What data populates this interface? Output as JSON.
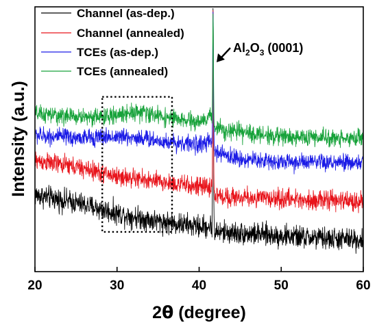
{
  "chart_data": {
    "type": "line",
    "xlabel_prefix": "2",
    "xlabel_symbol": "θ",
    "xlabel_suffix": " (degree)",
    "ylabel": "Intensity (a.u.)",
    "xlim": [
      20,
      60
    ],
    "ylim": [
      0,
      100
    ],
    "xticks": [
      20,
      30,
      40,
      50,
      60
    ],
    "y_tick_labels_shown": false,
    "grid": false,
    "legend_position": "top-left",
    "peak_x": 41.7,
    "series": [
      {
        "name": "Channel (as-dep.)",
        "color": "#000000",
        "baseline_pts": [
          [
            20,
            29
          ],
          [
            25,
            26
          ],
          [
            30,
            22
          ],
          [
            35,
            19
          ],
          [
            40,
            17
          ],
          [
            41.4,
            17
          ],
          [
            42,
            15
          ],
          [
            45,
            14.5
          ],
          [
            50,
            13.5
          ],
          [
            55,
            12.5
          ],
          [
            60,
            12
          ]
        ],
        "noise": 2.6,
        "peak_height": 100
      },
      {
        "name": "Channel (annealed)",
        "color": "#e8141b",
        "baseline_pts": [
          [
            20,
            42
          ],
          [
            25,
            39.5
          ],
          [
            30,
            36
          ],
          [
            35,
            34
          ],
          [
            40,
            32
          ],
          [
            41.4,
            32
          ],
          [
            42,
            28.5
          ],
          [
            45,
            28
          ],
          [
            50,
            27.5
          ],
          [
            55,
            27
          ],
          [
            60,
            26.5
          ]
        ],
        "noise": 2.2,
        "peak_height": 100
      },
      {
        "name": "TCEs (as-dep.)",
        "color": "#1b1be6",
        "baseline_pts": [
          [
            20,
            51.5
          ],
          [
            25,
            50.5
          ],
          [
            30,
            51
          ],
          [
            33,
            50.5
          ],
          [
            36,
            49
          ],
          [
            40,
            48
          ],
          [
            41.4,
            49
          ],
          [
            42,
            45
          ],
          [
            45,
            42.5
          ],
          [
            50,
            41.5
          ],
          [
            55,
            41
          ],
          [
            60,
            41
          ]
        ],
        "noise": 2.0,
        "peak_height": 100
      },
      {
        "name": "TCEs (annealed)",
        "color": "#17a23a",
        "baseline_pts": [
          [
            20,
            59.5
          ],
          [
            25,
            58.5
          ],
          [
            29,
            58.5
          ],
          [
            32,
            60.5
          ],
          [
            35,
            59
          ],
          [
            38,
            57
          ],
          [
            40.5,
            56.5
          ],
          [
            41.4,
            59
          ],
          [
            42,
            54.5
          ],
          [
            45,
            52.5
          ],
          [
            50,
            51
          ],
          [
            55,
            50.5
          ],
          [
            60,
            50.5
          ]
        ],
        "noise": 2.0,
        "peak_height": 100
      }
    ],
    "annotation": {
      "peak_label_main": "Al",
      "peak_label_sub1": "2",
      "peak_label_mid": "O",
      "peak_label_sub2": "3",
      "peak_label_tail": " (0001)"
    },
    "highlight_box": {
      "x_range": [
        28.2,
        36.7
      ],
      "y_range": [
        15,
        66
      ],
      "style": "dotted"
    }
  }
}
